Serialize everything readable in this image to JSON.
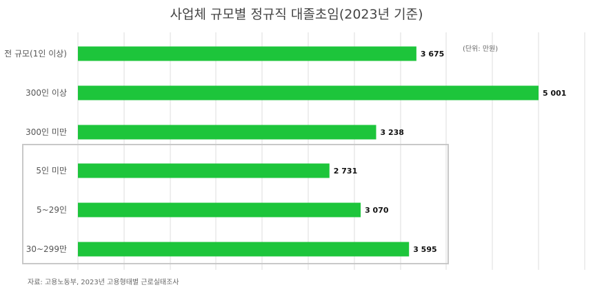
{
  "chart_data": {
    "type": "bar",
    "orientation": "horizontal",
    "title": "사업체 규모별 정규직 대졸초임(2023년 기준)",
    "unit_note": "(단위: 만원)",
    "categories": [
      "전 규모(1인 이상)",
      "300인 이상",
      "300인 미만",
      "5인 미만",
      "5~29인",
      "30~299만"
    ],
    "values": [
      3675,
      5001,
      3238,
      2731,
      3070,
      3595
    ],
    "value_labels": [
      "3 675",
      "5 001",
      "3 238",
      "2 731",
      "3 070",
      "3 595"
    ],
    "xlim": [
      0,
      5400
    ],
    "grid": true,
    "highlighted_group": [
      "5인 미만",
      "5~29인",
      "30~299만"
    ],
    "bar_color": "#1dc53b"
  },
  "source": "자료: 고용노동부, 2023년 고용형태별 근로실태조사"
}
